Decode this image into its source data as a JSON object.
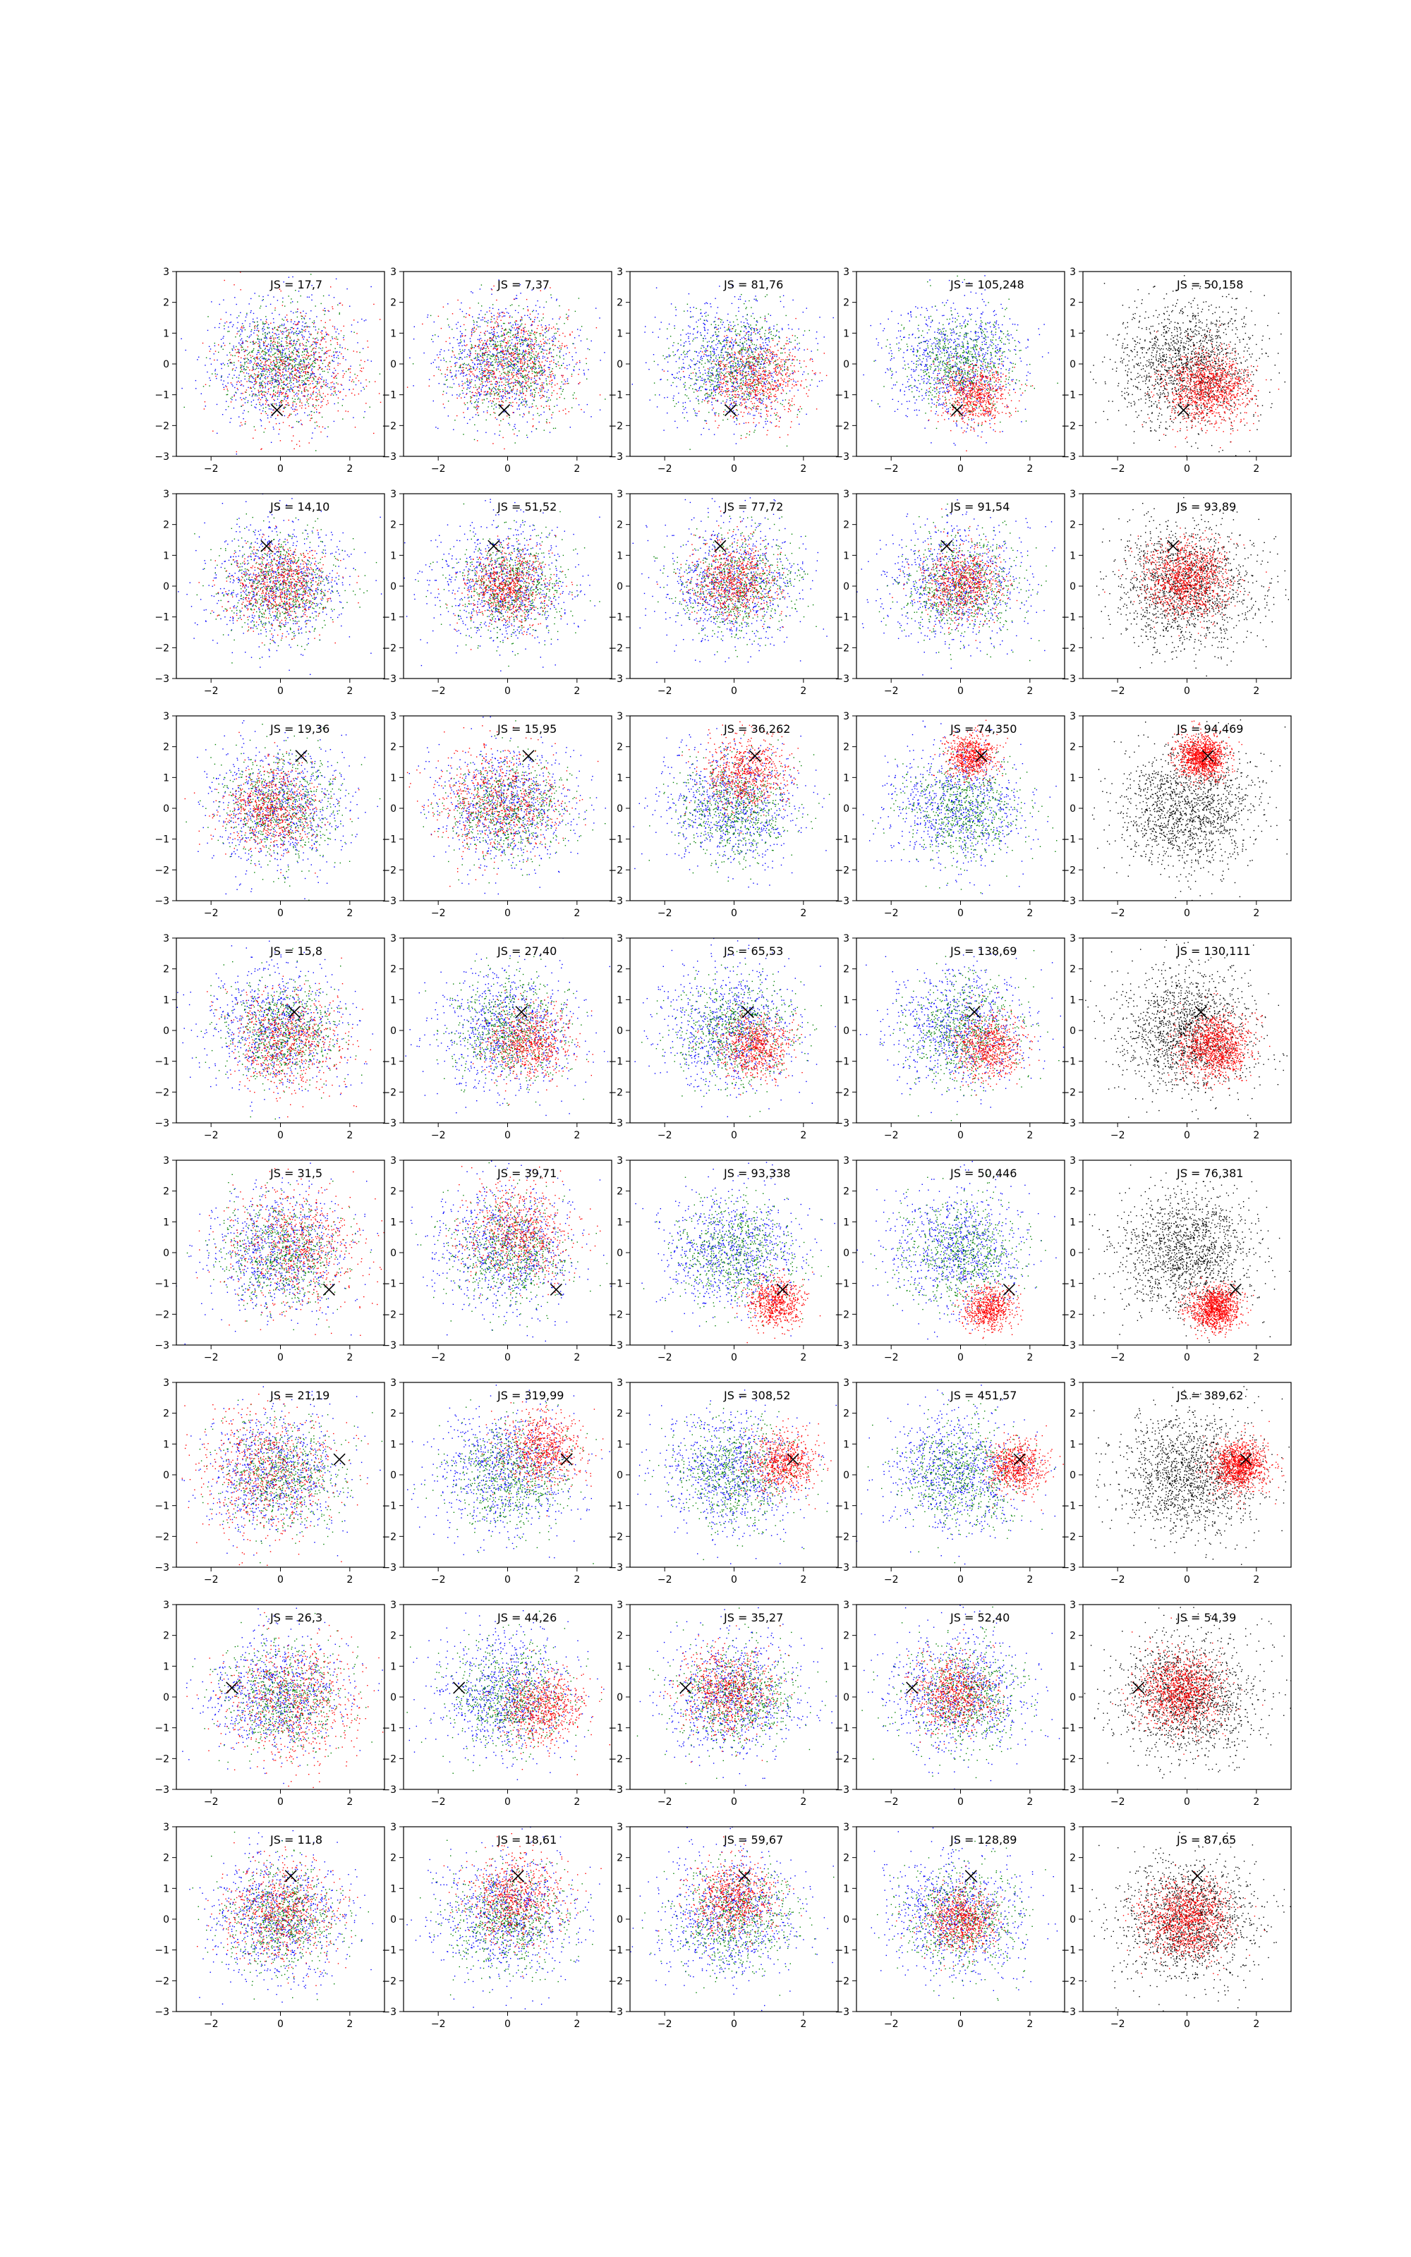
{
  "figure": {
    "rows": 8,
    "cols": 5
  },
  "colors": {
    "blue": "#0000ff",
    "green": "#008000",
    "red": "#ff0000",
    "black": "#000000"
  },
  "chart_data": {
    "type": "scatter",
    "grid": false,
    "xlim": [
      -3,
      3
    ],
    "ylim": [
      -3,
      3
    ],
    "x_ticks": [
      -2,
      0,
      2
    ],
    "y_ticks": [
      -3,
      -2,
      -1,
      0,
      1,
      2,
      3
    ],
    "panels": [
      {
        "row": 0,
        "col": 0,
        "label": "JS = 17,7",
        "marker": [
          -0.1,
          -1.5
        ],
        "mode": "mixed",
        "rcenter": [
          0.3,
          -0.3
        ],
        "rspread": 1.0
      },
      {
        "row": 0,
        "col": 1,
        "label": "JS = 7,37",
        "marker": [
          -0.1,
          -1.5
        ],
        "mode": "mixed",
        "rcenter": [
          0.1,
          0.0
        ],
        "rspread": 0.9
      },
      {
        "row": 0,
        "col": 2,
        "label": "JS = 81,76",
        "marker": [
          -0.1,
          -1.5
        ],
        "mode": "mixed",
        "rcenter": [
          0.7,
          -0.5
        ],
        "rspread": 0.7
      },
      {
        "row": 0,
        "col": 3,
        "label": "JS = 105,248",
        "marker": [
          -0.1,
          -1.5
        ],
        "mode": "mixed",
        "rcenter": [
          0.4,
          -1.0
        ],
        "rspread": 0.5
      },
      {
        "row": 0,
        "col": 4,
        "label": "JS = 50,158",
        "marker": [
          -0.1,
          -1.5
        ],
        "mode": "black",
        "rcenter": [
          0.6,
          -0.8
        ],
        "rspread": 0.6
      },
      {
        "row": 1,
        "col": 0,
        "label": "JS = 14,10",
        "marker": [
          -0.4,
          1.3
        ],
        "mode": "mixed",
        "rcenter": [
          0.0,
          0.0
        ],
        "rspread": 0.7
      },
      {
        "row": 1,
        "col": 1,
        "label": "JS = 51,52",
        "marker": [
          -0.4,
          1.3
        ],
        "mode": "mixed",
        "rcenter": [
          0.0,
          0.0
        ],
        "rspread": 0.6
      },
      {
        "row": 1,
        "col": 2,
        "label": "JS = 77,72",
        "marker": [
          -0.4,
          1.3
        ],
        "mode": "mixed",
        "rcenter": [
          0.0,
          0.2
        ],
        "rspread": 0.6
      },
      {
        "row": 1,
        "col": 3,
        "label": "JS = 91,54",
        "marker": [
          -0.4,
          1.3
        ],
        "mode": "mixed",
        "rcenter": [
          0.0,
          0.1
        ],
        "rspread": 0.6
      },
      {
        "row": 1,
        "col": 4,
        "label": "JS = 93,89",
        "marker": [
          -0.4,
          1.3
        ],
        "mode": "black",
        "rcenter": [
          0.0,
          0.2
        ],
        "rspread": 0.6
      },
      {
        "row": 2,
        "col": 0,
        "label": "JS = 19,36",
        "marker": [
          0.6,
          1.7
        ],
        "mode": "mixed",
        "rcenter": [
          -0.3,
          0.0
        ],
        "rspread": 0.7
      },
      {
        "row": 2,
        "col": 1,
        "label": "JS = 15,95",
        "marker": [
          0.6,
          1.7
        ],
        "mode": "mixed",
        "rcenter": [
          -0.3,
          0.3
        ],
        "rspread": 0.9
      },
      {
        "row": 2,
        "col": 2,
        "label": "JS = 36,262",
        "marker": [
          0.6,
          1.7
        ],
        "mode": "mixed",
        "rcenter": [
          0.3,
          1.2
        ],
        "rspread": 0.6
      },
      {
        "row": 2,
        "col": 3,
        "label": "JS = 74,350",
        "marker": [
          0.6,
          1.7
        ],
        "mode": "mixed",
        "rcenter": [
          0.3,
          1.7
        ],
        "rspread": 0.35
      },
      {
        "row": 2,
        "col": 4,
        "label": "JS = 94,469",
        "marker": [
          0.6,
          1.7
        ],
        "mode": "black",
        "rcenter": [
          0.4,
          1.7
        ],
        "rspread": 0.35
      },
      {
        "row": 3,
        "col": 0,
        "label": "JS = 15,8",
        "marker": [
          0.4,
          0.6
        ],
        "mode": "mixed",
        "rcenter": [
          0.2,
          -0.3
        ],
        "rspread": 0.8
      },
      {
        "row": 3,
        "col": 1,
        "label": "JS = 27,40",
        "marker": [
          0.4,
          0.6
        ],
        "mode": "mixed",
        "rcenter": [
          0.6,
          -0.4
        ],
        "rspread": 0.6
      },
      {
        "row": 3,
        "col": 2,
        "label": "JS = 65,53",
        "marker": [
          0.4,
          0.6
        ],
        "mode": "mixed",
        "rcenter": [
          0.6,
          -0.5
        ],
        "rspread": 0.5
      },
      {
        "row": 3,
        "col": 3,
        "label": "JS = 138,69",
        "marker": [
          0.4,
          0.6
        ],
        "mode": "mixed",
        "rcenter": [
          0.8,
          -0.5
        ],
        "rspread": 0.5
      },
      {
        "row": 3,
        "col": 4,
        "label": "JS = 130,111",
        "marker": [
          0.4,
          0.6
        ],
        "mode": "black",
        "rcenter": [
          0.8,
          -0.5
        ],
        "rspread": 0.5
      },
      {
        "row": 4,
        "col": 0,
        "label": "JS = 31,5",
        "marker": [
          1.4,
          -1.2
        ],
        "mode": "mixed",
        "rcenter": [
          0.4,
          0.2
        ],
        "rspread": 1.0
      },
      {
        "row": 4,
        "col": 1,
        "label": "JS = 39,71",
        "marker": [
          1.4,
          -1.2
        ],
        "mode": "mixed",
        "rcenter": [
          0.3,
          0.7
        ],
        "rspread": 0.8
      },
      {
        "row": 4,
        "col": 2,
        "label": "JS = 93,338",
        "marker": [
          1.4,
          -1.2
        ],
        "mode": "mixed",
        "rcenter": [
          1.2,
          -1.6
        ],
        "rspread": 0.4
      },
      {
        "row": 4,
        "col": 3,
        "label": "JS = 50,446",
        "marker": [
          1.4,
          -1.2
        ],
        "mode": "mixed",
        "rcenter": [
          0.8,
          -1.8
        ],
        "rspread": 0.35
      },
      {
        "row": 4,
        "col": 4,
        "label": "JS = 76,381",
        "marker": [
          1.4,
          -1.2
        ],
        "mode": "black",
        "rcenter": [
          0.8,
          -1.8
        ],
        "rspread": 0.35
      },
      {
        "row": 5,
        "col": 0,
        "label": "JS = 21,19",
        "marker": [
          1.7,
          0.5
        ],
        "mode": "mixed",
        "rcenter": [
          -0.4,
          0.1
        ],
        "rspread": 1.0
      },
      {
        "row": 5,
        "col": 1,
        "label": "JS = 319,99",
        "marker": [
          1.7,
          0.5
        ],
        "mode": "mixed",
        "rcenter": [
          1.0,
          0.9
        ],
        "rspread": 0.6
      },
      {
        "row": 5,
        "col": 2,
        "label": "JS = 308,52",
        "marker": [
          1.7,
          0.5
        ],
        "mode": "mixed",
        "rcenter": [
          1.4,
          0.4
        ],
        "rspread": 0.5
      },
      {
        "row": 5,
        "col": 3,
        "label": "JS = 451,57",
        "marker": [
          1.7,
          0.5
        ],
        "mode": "mixed",
        "rcenter": [
          1.6,
          0.3
        ],
        "rspread": 0.4
      },
      {
        "row": 5,
        "col": 4,
        "label": "JS = 389,62",
        "marker": [
          1.7,
          0.5
        ],
        "mode": "black",
        "rcenter": [
          1.5,
          0.3
        ],
        "rspread": 0.4
      },
      {
        "row": 6,
        "col": 0,
        "label": "JS = 26,3",
        "marker": [
          -1.4,
          0.3
        ],
        "mode": "mixed",
        "rcenter": [
          0.3,
          -0.2
        ],
        "rspread": 1.0
      },
      {
        "row": 6,
        "col": 1,
        "label": "JS = 44,26",
        "marker": [
          -1.4,
          0.3
        ],
        "mode": "mixed",
        "rcenter": [
          1.0,
          -0.3
        ],
        "rspread": 0.6
      },
      {
        "row": 6,
        "col": 2,
        "label": "JS = 35,27",
        "marker": [
          -1.4,
          0.3
        ],
        "mode": "mixed",
        "rcenter": [
          -0.2,
          0.2
        ],
        "rspread": 0.7
      },
      {
        "row": 6,
        "col": 3,
        "label": "JS = 52,40",
        "marker": [
          -1.4,
          0.3
        ],
        "mode": "mixed",
        "rcenter": [
          -0.2,
          0.1
        ],
        "rspread": 0.6
      },
      {
        "row": 6,
        "col": 4,
        "label": "JS = 54,39",
        "marker": [
          -1.4,
          0.3
        ],
        "mode": "black",
        "rcenter": [
          -0.2,
          0.2
        ],
        "rspread": 0.6
      },
      {
        "row": 7,
        "col": 0,
        "label": "JS = 11,8",
        "marker": [
          0.3,
          1.4
        ],
        "mode": "mixed",
        "rcenter": [
          0.0,
          0.2
        ],
        "rspread": 0.8
      },
      {
        "row": 7,
        "col": 1,
        "label": "JS = 18,61",
        "marker": [
          0.3,
          1.4
        ],
        "mode": "mixed",
        "rcenter": [
          0.2,
          0.7
        ],
        "rspread": 0.7
      },
      {
        "row": 7,
        "col": 2,
        "label": "JS = 59,67",
        "marker": [
          0.3,
          1.4
        ],
        "mode": "mixed",
        "rcenter": [
          0.0,
          0.7
        ],
        "rspread": 0.6
      },
      {
        "row": 7,
        "col": 3,
        "label": "JS = 128,89",
        "marker": [
          0.3,
          1.4
        ],
        "mode": "mixed",
        "rcenter": [
          0.0,
          0.0
        ],
        "rspread": 0.5
      },
      {
        "row": 7,
        "col": 4,
        "label": "JS = 87,65",
        "marker": [
          0.3,
          1.4
        ],
        "mode": "black",
        "rcenter": [
          0.0,
          0.0
        ],
        "rspread": 0.6
      }
    ]
  }
}
